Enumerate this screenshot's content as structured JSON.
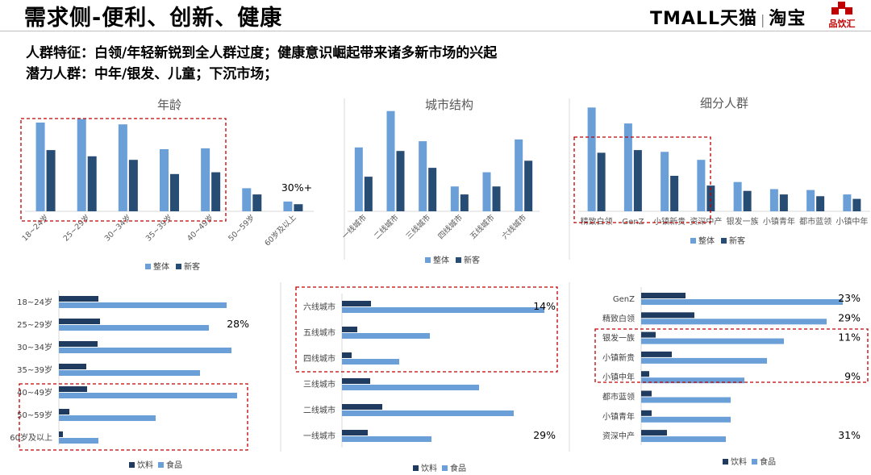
{
  "header": {
    "title": "需求侧-便利、创新、健康",
    "brand_tmall": "TMALL天猫",
    "brand_sep": "|",
    "brand_taobao": "淘宝",
    "brand_pinyin": "品饮汇"
  },
  "subtitles": [
    "人群特征：白领/年轻新锐到全人群过度；健康意识崛起带来诸多新市场的兴起",
    "潜力人群：中年/银发、儿童；下沉市场；"
  ],
  "colors": {
    "overall": "#6a9fd8",
    "new_customer": "#284d75",
    "drink": "#1f3b5f",
    "food": "#6a9fd8",
    "highlight_box": "#c00000"
  },
  "chart_data": [
    {
      "type": "bar",
      "title": "年龄",
      "categories": [
        "18~24岁",
        "25~29岁",
        "30~34岁",
        "35~39岁",
        "40~49岁",
        "50~59岁",
        "60岁及以上"
      ],
      "series": [
        {
          "name": "整体",
          "values": [
            100,
            104,
            98,
            70,
            71,
            26,
            11
          ]
        },
        {
          "name": "新客",
          "values": [
            69,
            62,
            58,
            42,
            44,
            19,
            8
          ]
        }
      ],
      "annotation": "30%+",
      "legend": "bottom"
    },
    {
      "type": "bar",
      "title": "城市结构",
      "categories": [
        "一线城市",
        "二线城市",
        "三线城市",
        "四线城市",
        "五线城市",
        "六线城市"
      ],
      "series": [
        {
          "name": "整体",
          "values": [
            72,
            113,
            79,
            28,
            44,
            81
          ]
        },
        {
          "name": "新客",
          "values": [
            39,
            68,
            49,
            19,
            28,
            57
          ]
        }
      ],
      "legend": "bottom"
    },
    {
      "type": "bar",
      "title": "细分人群",
      "categories": [
        "精致白领",
        "GenZ",
        "小镇新贵",
        "资深中产",
        "银发一族",
        "小镇青年",
        "都市蓝领",
        "小镇中年"
      ],
      "series": [
        {
          "name": "整体",
          "values": [
            117,
            99,
            67,
            58,
            33,
            25,
            24,
            19
          ]
        },
        {
          "name": "新客",
          "values": [
            66,
            69,
            40,
            29,
            23,
            19,
            17,
            14
          ]
        }
      ],
      "legend": "bottom"
    },
    {
      "type": "bar",
      "orientation": "horizontal",
      "categories": [
        "18~24岁",
        "25~29岁",
        "30~34岁",
        "35~39岁",
        "40~49岁",
        "50~59岁",
        "60岁及以上"
      ],
      "series": [
        {
          "name": "饮料",
          "values": [
            49,
            51,
            48,
            34,
            35,
            13,
            5
          ]
        },
        {
          "name": "食品",
          "values": [
            208,
            186,
            214,
            175,
            221,
            120,
            49
          ]
        }
      ],
      "annotations": [
        {
          "text": "28%",
          "row": 1
        }
      ],
      "legend": "bottom"
    },
    {
      "type": "bar",
      "orientation": "horizontal",
      "categories": [
        "六线城市",
        "五线城市",
        "四线城市",
        "三线城市",
        "二线城市",
        "一线城市"
      ],
      "series": [
        {
          "name": "饮料",
          "values": [
            36,
            19,
            12,
            35,
            50,
            32
          ]
        },
        {
          "name": "食品",
          "values": [
            251,
            109,
            71,
            170,
            213,
            111
          ]
        }
      ],
      "annotations": [
        {
          "text": "14%",
          "row": 0
        },
        {
          "text": "29%",
          "row": 5
        }
      ],
      "legend": "bottom"
    },
    {
      "type": "bar",
      "orientation": "horizontal",
      "categories": [
        "GenZ",
        "精致白领",
        "银发一族",
        "小镇新贵",
        "小镇中年",
        "都市蓝领",
        "小镇青年",
        "资深中产"
      ],
      "series": [
        {
          "name": "饮料",
          "values": [
            55,
            66,
            18,
            38,
            10,
            13,
            13,
            32
          ]
        },
        {
          "name": "食品",
          "values": [
            250,
            230,
            177,
            156,
            128,
            111,
            111,
            105
          ]
        }
      ],
      "annotations": [
        {
          "text": "23%",
          "row": 0
        },
        {
          "text": "29%",
          "row": 1
        },
        {
          "text": "11%",
          "row": 2
        },
        {
          "text": "9%",
          "row": 4
        },
        {
          "text": "31%",
          "row": 7
        }
      ],
      "legend": "bottom"
    }
  ]
}
